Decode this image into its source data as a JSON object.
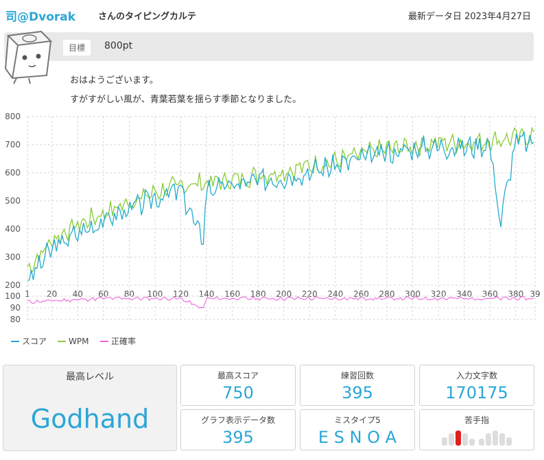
{
  "header": {
    "user_name": "司@Dvorak",
    "title_suffix": "さんのタイピングカルテ",
    "latest_date": "最新データ日 2023年4月27日"
  },
  "goal": {
    "label": "目標",
    "value": "800pt"
  },
  "messages": [
    "おはようございます。",
    "すがすがしい風が、青葉若葉を揺らす季節となりました。"
  ],
  "chart_data": [
    {
      "type": "line",
      "x_ticks": [
        "1",
        "20",
        "40",
        "60",
        "80",
        "100",
        "120",
        "140",
        "160",
        "180",
        "200",
        "220",
        "240",
        "260",
        "280",
        "300",
        "320",
        "340",
        "360",
        "380",
        "39"
      ],
      "y_ticks": [
        "800",
        "700",
        "600",
        "500",
        "400",
        "300",
        "200"
      ],
      "ylim": [
        200,
        800
      ],
      "xlim": [
        1,
        395
      ],
      "series": [
        {
          "name": "スコア",
          "color": "#22aacc",
          "values": [
            [
              1,
              215
            ],
            [
              20,
              330
            ],
            [
              40,
              385
            ],
            [
              60,
              430
            ],
            [
              80,
              470
            ],
            [
              100,
              510
            ],
            [
              120,
              540
            ],
            [
              137,
              355
            ],
            [
              140,
              545
            ],
            [
              160,
              555
            ],
            [
              180,
              570
            ],
            [
              200,
              585
            ],
            [
              220,
              605
            ],
            [
              240,
              625
            ],
            [
              260,
              650
            ],
            [
              280,
              670
            ],
            [
              300,
              685
            ],
            [
              320,
              695
            ],
            [
              340,
              690
            ],
            [
              360,
              705
            ],
            [
              368,
              420
            ],
            [
              380,
              715
            ],
            [
              395,
              700
            ]
          ]
        },
        {
          "name": "WPM",
          "color": "#88cc33",
          "values": [
            [
              1,
              255
            ],
            [
              20,
              360
            ],
            [
              40,
              415
            ],
            [
              60,
              455
            ],
            [
              80,
              495
            ],
            [
              100,
              530
            ],
            [
              120,
              555
            ],
            [
              140,
              565
            ],
            [
              160,
              575
            ],
            [
              180,
              590
            ],
            [
              200,
              605
            ],
            [
              220,
              625
            ],
            [
              240,
              640
            ],
            [
              260,
              665
            ],
            [
              280,
              685
            ],
            [
              300,
              695
            ],
            [
              320,
              710
            ],
            [
              340,
              705
            ],
            [
              360,
              715
            ],
            [
              380,
              725
            ],
            [
              395,
              735
            ]
          ]
        }
      ]
    },
    {
      "type": "line",
      "x_ticks": [],
      "y_ticks": [
        "100",
        "90",
        "80"
      ],
      "ylim": [
        80,
        100
      ],
      "xlim": [
        1,
        395
      ],
      "series": [
        {
          "name": "正確率",
          "color": "#ee66dd",
          "values": [
            [
              1,
              95
            ],
            [
              20,
              96
            ],
            [
              40,
              97
            ],
            [
              60,
              98
            ],
            [
              80,
              98
            ],
            [
              100,
              98
            ],
            [
              120,
              98
            ],
            [
              137,
              89
            ],
            [
              140,
              98
            ],
            [
              160,
              98
            ],
            [
              180,
              98
            ],
            [
              200,
              98
            ],
            [
              220,
              98
            ],
            [
              240,
              98
            ],
            [
              260,
              98
            ],
            [
              280,
              98
            ],
            [
              300,
              98
            ],
            [
              320,
              98
            ],
            [
              340,
              98
            ],
            [
              360,
              98
            ],
            [
              380,
              98
            ],
            [
              395,
              98
            ]
          ]
        }
      ]
    }
  ],
  "legend": {
    "score": "スコア",
    "wpm": "WPM",
    "accuracy": "正確率"
  },
  "stats": {
    "max_level": {
      "label": "最高レベル",
      "value": "Godhand"
    },
    "max_score": {
      "label": "最高スコア",
      "value": "750"
    },
    "practice_count": {
      "label": "練習回数",
      "value": "395"
    },
    "chars_typed": {
      "label": "入力文字数",
      "value": "170175"
    },
    "graph_points": {
      "label": "グラフ表示データ数",
      "value": "395"
    },
    "mistype": {
      "label": "ミスタイプ5",
      "value": "E S N O A"
    },
    "weak_finger": {
      "label": "苦手指"
    }
  }
}
